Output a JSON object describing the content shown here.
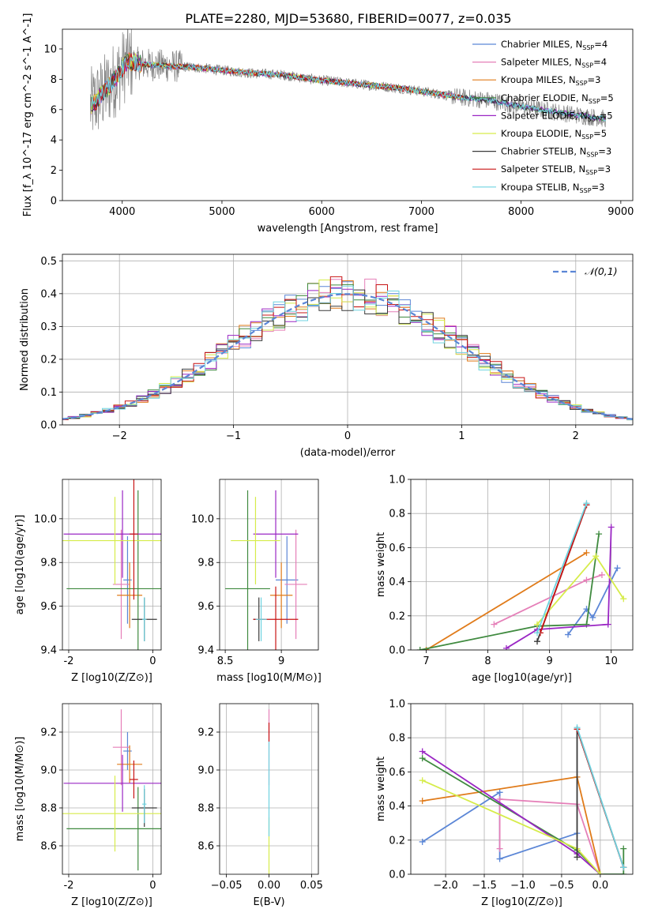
{
  "figure": {
    "title": "PLATE=2280, MJD=53680, FIBERID=0077, z=0.035",
    "colors": {
      "chabrier_miles": "#5b86d6",
      "salpeter_miles": "#e57fb8",
      "kroupa_miles": "#e07b1a",
      "chabrier_elodie": "#3f8a3f",
      "salpeter_elodie": "#9a26c4",
      "kroupa_elodie": "#d6ec4a",
      "chabrier_stelib": "#3a3a3a",
      "salpeter_stelib": "#c81414",
      "kroupa_stelib": "#6fd3e0",
      "data": "#808080"
    }
  },
  "chart_data": [
    {
      "id": "spectrum",
      "type": "line",
      "xlabel": "wavelength [Angstrom, rest frame]",
      "ylabel": "Flux [f_λ 10^-17 erg cm^-2 s^-1 A^-1]",
      "xlim": [
        3400,
        9120
      ],
      "ylim": [
        0,
        11.3
      ],
      "xticks": [
        4000,
        5000,
        6000,
        7000,
        8000,
        9000
      ],
      "yticks": [
        0,
        2,
        4,
        6,
        8,
        10
      ],
      "grid": false,
      "legend": [
        {
          "label": "Chabrier MILES, N",
          "sub": "SSP",
          "suffix": "=4",
          "color_key": "chabrier_miles"
        },
        {
          "label": "Salpeter MILES, N",
          "sub": "SSP",
          "suffix": "=4",
          "color_key": "salpeter_miles"
        },
        {
          "label": "Kroupa MILES, N",
          "sub": "SSP",
          "suffix": "=3",
          "color_key": "kroupa_miles"
        },
        {
          "label": "Chabrier ELODIE, N",
          "sub": "SSP",
          "suffix": "=5",
          "color_key": "chabrier_elodie"
        },
        {
          "label": "Salpeter ELODIE, N",
          "sub": "SSP",
          "suffix": "=5",
          "color_key": "salpeter_elodie"
        },
        {
          "label": "Kroupa ELODIE, N",
          "sub": "SSP",
          "suffix": "=5",
          "color_key": "kroupa_elodie"
        },
        {
          "label": "Chabrier STELIB, N",
          "sub": "SSP",
          "suffix": "=3",
          "color_key": "chabrier_stelib"
        },
        {
          "label": "Salpeter STELIB, N",
          "sub": "SSP",
          "suffix": "=3",
          "color_key": "salpeter_stelib"
        },
        {
          "label": "Kroupa STELIB, N",
          "sub": "SSP",
          "suffix": "=3",
          "color_key": "kroupa_stelib"
        }
      ],
      "legend_position": "top-right",
      "continuum": [
        [
          3680,
          6.2
        ],
        [
          3800,
          7.0
        ],
        [
          3950,
          8.2
        ],
        [
          4050,
          9.2
        ],
        [
          4200,
          9.0
        ],
        [
          4400,
          8.9
        ],
        [
          4700,
          8.8
        ],
        [
          5000,
          8.6
        ],
        [
          5300,
          8.4
        ],
        [
          5600,
          8.3
        ],
        [
          5900,
          8.0
        ],
        [
          6200,
          7.8
        ],
        [
          6500,
          7.6
        ],
        [
          6800,
          7.4
        ],
        [
          7100,
          7.1
        ],
        [
          7400,
          6.8
        ],
        [
          7700,
          6.6
        ],
        [
          8000,
          6.2
        ],
        [
          8300,
          5.9
        ],
        [
          8600,
          5.6
        ],
        [
          8850,
          5.4
        ]
      ],
      "models_range": [
        [
          3690,
          7420
        ],
        [
          3690,
          7420
        ],
        [
          3690,
          7420
        ],
        [
          3690,
          8850
        ],
        [
          3690,
          8850
        ],
        [
          3690,
          7420
        ],
        [
          3690,
          8850
        ],
        [
          3690,
          7420
        ],
        [
          3690,
          8850
        ]
      ]
    },
    {
      "id": "residuals",
      "type": "histogram",
      "xlabel": "(data-model)/error",
      "ylabel": "Normed distribution",
      "xlim": [
        -2.5,
        2.5
      ],
      "ylim": [
        0,
        0.52
      ],
      "xticks": [
        -2,
        -1,
        0,
        1,
        2
      ],
      "xticklabels": [
        "−2",
        "−1",
        "0",
        "1",
        "2"
      ],
      "yticks": [
        0.0,
        0.1,
        0.2,
        0.3,
        0.4,
        0.5
      ],
      "grid": true,
      "bin_width": 0.1,
      "legend": [
        {
          "label": "𝒩(0,1)",
          "style": "dashed",
          "color": "#5b86d6"
        }
      ],
      "legend_position": "top-right"
    },
    {
      "id": "age_vs_Z",
      "type": "errorbar",
      "xlabel": "Z [log10(Z/Z⊙)]",
      "ylabel": "age [log10(age/yr)]",
      "xlim": [
        -2.15,
        0.2
      ],
      "ylim": [
        9.4,
        10.18
      ],
      "xticks": [
        -2,
        0
      ],
      "yticks": [
        9.4,
        9.6,
        9.8,
        10.0
      ],
      "grid": true,
      "points": [
        {
          "key": "chabrier_miles",
          "x": -0.6,
          "y": 9.72,
          "xerr": 0.1,
          "yerr": 0.2
        },
        {
          "key": "salpeter_miles",
          "x": -0.75,
          "y": 9.7,
          "xerr": 0.2,
          "yerr": 0.25
        },
        {
          "key": "kroupa_miles",
          "x": -0.55,
          "y": 9.65,
          "xerr": 0.3,
          "yerr": 0.15
        },
        {
          "key": "chabrier_elodie",
          "x": -0.35,
          "y": 9.68,
          "xerr": 1.7,
          "yerr": 0.45
        },
        {
          "key": "salpeter_elodie",
          "x": -0.72,
          "y": 9.93,
          "xerr": 1.4,
          "yerr": 0.2
        },
        {
          "key": "kroupa_elodie",
          "x": -0.9,
          "y": 9.9,
          "xerr": 1.25,
          "yerr": 0.2
        },
        {
          "key": "chabrier_stelib",
          "x": -0.2,
          "y": 9.54,
          "xerr": 0.3,
          "yerr": 0.1
        },
        {
          "key": "salpeter_stelib",
          "x": -0.45,
          "y": 9.93,
          "xerr": 0.1,
          "yerr": 0.3
        },
        {
          "key": "kroupa_stelib",
          "x": -0.2,
          "y": 9.54,
          "xerr": 0.05,
          "yerr": 0.1
        }
      ]
    },
    {
      "id": "age_vs_mass",
      "type": "errorbar",
      "xlabel": "mass [log10(M/M⊙)]",
      "ylabel": "",
      "xlim": [
        8.45,
        9.33
      ],
      "ylim": [
        9.4,
        10.18
      ],
      "xticks": [
        8.5,
        9.0
      ],
      "yticks": [
        9.4,
        9.6,
        9.8,
        10.0
      ],
      "grid": true,
      "points": [
        {
          "key": "chabrier_miles",
          "x": 9.05,
          "y": 9.72,
          "xerr": 0.1,
          "yerr": 0.2
        },
        {
          "key": "salpeter_miles",
          "x": 9.13,
          "y": 9.7,
          "xerr": 0.1,
          "yerr": 0.25
        },
        {
          "key": "kroupa_miles",
          "x": 9.0,
          "y": 9.65,
          "xerr": 0.1,
          "yerr": 0.15
        },
        {
          "key": "chabrier_elodie",
          "x": 8.7,
          "y": 9.68,
          "xerr": 0.2,
          "yerr": 0.45
        },
        {
          "key": "salpeter_elodie",
          "x": 8.95,
          "y": 9.93,
          "xerr": 0.2,
          "yerr": 0.2
        },
        {
          "key": "kroupa_elodie",
          "x": 8.77,
          "y": 9.9,
          "xerr": 0.22,
          "yerr": 0.2
        },
        {
          "key": "chabrier_stelib",
          "x": 8.8,
          "y": 9.54,
          "xerr": 0.05,
          "yerr": 0.1
        },
        {
          "key": "salpeter_stelib",
          "x": 8.95,
          "y": 9.54,
          "xerr": 0.2,
          "yerr": 0.15
        },
        {
          "key": "kroupa_stelib",
          "x": 8.82,
          "y": 9.54,
          "xerr": 0.05,
          "yerr": 0.1
        }
      ]
    },
    {
      "id": "weight_vs_age",
      "type": "line",
      "xlabel": "age [log10(age/yr)]",
      "ylabel": "mass weight",
      "xlim": [
        6.75,
        10.35
      ],
      "ylim": [
        0,
        1.0
      ],
      "xticks": [
        7,
        8,
        9,
        10
      ],
      "yticks": [
        0.0,
        0.2,
        0.4,
        0.6,
        0.8,
        1.0
      ],
      "grid": true,
      "series": [
        {
          "key": "chabrier_miles",
          "x": [
            9.3,
            9.6,
            9.7,
            10.1
          ],
          "y": [
            0.09,
            0.24,
            0.19,
            0.48
          ]
        },
        {
          "key": "salpeter_miles",
          "x": [
            8.1,
            9.6,
            9.85
          ],
          "y": [
            0.15,
            0.41,
            0.44
          ]
        },
        {
          "key": "kroupa_miles",
          "x": [
            7.0,
            9.6
          ],
          "y": [
            0.0,
            0.57
          ]
        },
        {
          "key": "chabrier_elodie",
          "x": [
            6.9,
            8.8,
            9.6,
            9.8
          ],
          "y": [
            0.0,
            0.14,
            0.15,
            0.68
          ]
        },
        {
          "key": "salpeter_elodie",
          "x": [
            8.3,
            8.8,
            9.95,
            10.0
          ],
          "y": [
            0.01,
            0.12,
            0.15,
            0.72
          ]
        },
        {
          "key": "kroupa_elodie",
          "x": [
            8.8,
            9.75,
            10.2
          ],
          "y": [
            0.15,
            0.55,
            0.3
          ]
        },
        {
          "key": "chabrier_stelib",
          "x": [
            8.8,
            9.6
          ],
          "y": [
            0.05,
            0.85
          ]
        },
        {
          "key": "salpeter_stelib",
          "x": [
            8.85,
            9.6
          ],
          "y": [
            0.1,
            0.85
          ]
        },
        {
          "key": "kroupa_stelib",
          "x": [
            8.8,
            9.6
          ],
          "y": [
            0.1,
            0.86
          ]
        }
      ]
    },
    {
      "id": "mass_vs_Z",
      "type": "errorbar",
      "xlabel": "Z [log10(Z/Z⊙)]",
      "ylabel": "mass [log10(M/M⊙)]",
      "xlim": [
        -2.15,
        0.2
      ],
      "ylim": [
        8.45,
        9.35
      ],
      "xticks": [
        -2,
        0
      ],
      "yticks": [
        8.6,
        8.8,
        9.0,
        9.2
      ],
      "grid": true,
      "points": [
        {
          "key": "chabrier_miles",
          "x": -0.6,
          "y": 9.1,
          "xerr": 0.1,
          "yerr": 0.1
        },
        {
          "key": "salpeter_miles",
          "x": -0.75,
          "y": 9.12,
          "xerr": 0.2,
          "yerr": 0.2
        },
        {
          "key": "kroupa_miles",
          "x": -0.55,
          "y": 9.03,
          "xerr": 0.3,
          "yerr": 0.1
        },
        {
          "key": "chabrier_elodie",
          "x": -0.35,
          "y": 8.69,
          "xerr": 1.7,
          "yerr": 0.22
        },
        {
          "key": "salpeter_elodie",
          "x": -0.72,
          "y": 8.93,
          "xerr": 1.4,
          "yerr": 0.15
        },
        {
          "key": "kroupa_elodie",
          "x": -0.9,
          "y": 8.77,
          "xerr": 1.25,
          "yerr": 0.2
        },
        {
          "key": "chabrier_stelib",
          "x": -0.2,
          "y": 8.8,
          "xerr": 0.3,
          "yerr": 0.1
        },
        {
          "key": "salpeter_stelib",
          "x": -0.45,
          "y": 8.95,
          "xerr": 0.1,
          "yerr": 0.1
        },
        {
          "key": "kroupa_stelib",
          "x": -0.2,
          "y": 8.82,
          "xerr": 0.05,
          "yerr": 0.1
        }
      ]
    },
    {
      "id": "mass_vs_ebv",
      "type": "errorbar",
      "xlabel": "E(B-V)",
      "ylabel": "",
      "xlim": [
        -0.058,
        0.058
      ],
      "ylim": [
        8.45,
        9.35
      ],
      "xticks": [
        -0.05,
        0.0,
        0.05
      ],
      "xticklabels": [
        "−0.05",
        "0.00",
        "0.05"
      ],
      "yticks": [
        8.6,
        8.8,
        9.0,
        9.2
      ],
      "grid": true,
      "points": [
        {
          "key": "salpeter_miles",
          "x": 0.0,
          "y": 9.12,
          "xerr": 0,
          "yerr": 0.2
        },
        {
          "key": "salpeter_stelib",
          "x": 0.0,
          "y": 9.2,
          "xerr": 0,
          "yerr": 0.05
        },
        {
          "key": "kroupa_elodie",
          "x": 0.0,
          "y": 8.6,
          "xerr": 0,
          "yerr": 0.15
        },
        {
          "key": "kroupa_stelib",
          "x": 0.0,
          "y": 8.9,
          "xerr": 0,
          "yerr": 0.25
        }
      ]
    },
    {
      "id": "weight_vs_Z",
      "type": "line",
      "xlabel": "Z [log10(Z/Z⊙)]",
      "ylabel": "mass weight",
      "xlim": [
        -2.45,
        0.42
      ],
      "ylim": [
        0,
        1.0
      ],
      "xticks": [
        -2.0,
        -1.5,
        -1.0,
        -0.5,
        0.0
      ],
      "xticklabels": [
        "−2.0",
        "−1.5",
        "−1.0",
        "−0.5",
        "0.0"
      ],
      "yticks": [
        0.0,
        0.2,
        0.4,
        0.6,
        0.8,
        1.0
      ],
      "grid": true,
      "series": [
        {
          "key": "chabrier_miles",
          "x": [
            -2.3,
            -1.3,
            -1.3,
            -0.3
          ],
          "y": [
            0.19,
            0.48,
            0.09,
            0.24
          ]
        },
        {
          "key": "salpeter_miles",
          "x": [
            -1.3,
            -1.3,
            -0.3,
            0.0
          ],
          "y": [
            0.15,
            0.44,
            0.41,
            0.0
          ]
        },
        {
          "key": "kroupa_miles",
          "x": [
            -2.3,
            -0.3,
            0.0
          ],
          "y": [
            0.43,
            0.57,
            0.0
          ]
        },
        {
          "key": "chabrier_elodie",
          "x": [
            -2.3,
            -0.3,
            0.0,
            0.3,
            0.3
          ],
          "y": [
            0.68,
            0.14,
            0.0,
            0.0,
            0.15
          ]
        },
        {
          "key": "salpeter_elodie",
          "x": [
            -2.3,
            -0.3,
            0.0
          ],
          "y": [
            0.72,
            0.12,
            0.0
          ]
        },
        {
          "key": "kroupa_elodie",
          "x": [
            -2.3,
            -0.3,
            0.0
          ],
          "y": [
            0.55,
            0.15,
            0.0
          ]
        },
        {
          "key": "chabrier_stelib",
          "x": [
            -0.3,
            -0.3,
            0.3
          ],
          "y": [
            0.1,
            0.85,
            0.04
          ]
        },
        {
          "key": "salpeter_stelib",
          "x": [
            -0.3,
            0.3
          ],
          "y": [
            0.85,
            0.04
          ]
        },
        {
          "key": "kroupa_stelib",
          "x": [
            -0.3,
            0.3
          ],
          "y": [
            0.86,
            0.04
          ]
        }
      ]
    }
  ]
}
